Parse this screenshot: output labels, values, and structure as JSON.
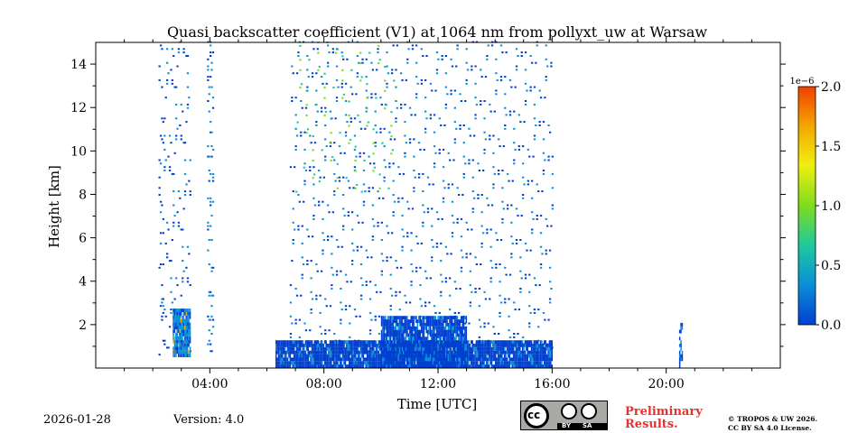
{
  "header": {
    "title": "Quasi backscatter coefficient (V1) at 1064 nm from pollyxt_uw at Warsaw"
  },
  "chart_data": {
    "type": "heatmap",
    "title": "Quasi backscatter coefficient (V1) at 1064 nm from pollyxt_uw at Warsaw",
    "xlabel": "Time [UTC]",
    "ylabel": "Height [km]",
    "xlim_hours": [
      0,
      24
    ],
    "ylim_km": [
      0,
      15
    ],
    "x_ticks": [
      {
        "hour": 4,
        "label": "04:00"
      },
      {
        "hour": 8,
        "label": "08:00"
      },
      {
        "hour": 12,
        "label": "12:00"
      },
      {
        "hour": 16,
        "label": "16:00"
      },
      {
        "hour": 20,
        "label": "20:00"
      }
    ],
    "y_ticks": [
      {
        "km": 2,
        "label": "2"
      },
      {
        "km": 4,
        "label": "4"
      },
      {
        "km": 6,
        "label": "6"
      },
      {
        "km": 8,
        "label": "8"
      },
      {
        "km": 10,
        "label": "10"
      },
      {
        "km": 12,
        "label": "12"
      },
      {
        "km": 14,
        "label": "14"
      }
    ],
    "colorbar": {
      "scale_label": "1e−6",
      "min": 0.0,
      "max": 2.0,
      "ticks": [
        {
          "value": 0.0,
          "label": "0.0"
        },
        {
          "value": 0.5,
          "label": "0.5"
        },
        {
          "value": 1.0,
          "label": "1.0"
        },
        {
          "value": 1.5,
          "label": "1.5"
        },
        {
          "value": 2.0,
          "label": "2.0"
        }
      ],
      "colors": [
        "#0040d0",
        "#0a8fd8",
        "#1ec8a0",
        "#7ddc1f",
        "#f0ef10",
        "#f5a800",
        "#f04000"
      ]
    },
    "data_regions": [
      {
        "name": "night-column",
        "t_start": 2.2,
        "t_end": 3.3,
        "h_min": 0.5,
        "h_max": 15.0,
        "value": 0.1,
        "density": 0.12
      },
      {
        "name": "night-low-cloud",
        "t_start": 2.7,
        "t_end": 3.3,
        "h_min": 0.5,
        "h_max": 2.6,
        "value": 0.2,
        "density": 0.9
      },
      {
        "name": "night-column-2",
        "t_start": 3.9,
        "t_end": 4.1,
        "h_min": 0.5,
        "h_max": 15.0,
        "value": 0.2,
        "density": 0.25
      },
      {
        "name": "sparse-midday",
        "t_start": 6.8,
        "t_end": 16.0,
        "h_min": 0.5,
        "h_max": 15.0,
        "value": 0.1,
        "density": 0.08
      },
      {
        "name": "upper-cirrus",
        "t_start": 7.0,
        "t_end": 10.5,
        "h_min": 8.0,
        "h_max": 15.0,
        "value": 0.8,
        "density": 0.06
      },
      {
        "name": "boundary-layer",
        "t_start": 6.3,
        "t_end": 16.0,
        "h_min": 0.0,
        "h_max": 1.2,
        "value": 0.05,
        "density": 0.95
      },
      {
        "name": "boundary-layer-top",
        "t_start": 10.0,
        "t_end": 13.0,
        "h_min": 0.0,
        "h_max": 2.3,
        "value": 0.05,
        "density": 0.9
      },
      {
        "name": "evening-trace",
        "t_start": 20.45,
        "t_end": 20.55,
        "h_min": 0.0,
        "h_max": 2.0,
        "value": 0.1,
        "density": 0.6
      }
    ]
  },
  "footer": {
    "date": "2026-01-28",
    "version": "Version: 4.0",
    "preliminary_line1": "Preliminary",
    "preliminary_line2": "Results.",
    "copyright_line1": "© TROPOS & UW 2026.",
    "copyright_line2": "CC BY SA 4.0 License.",
    "license_badge": {
      "by": "BY",
      "sa": "SA"
    }
  }
}
